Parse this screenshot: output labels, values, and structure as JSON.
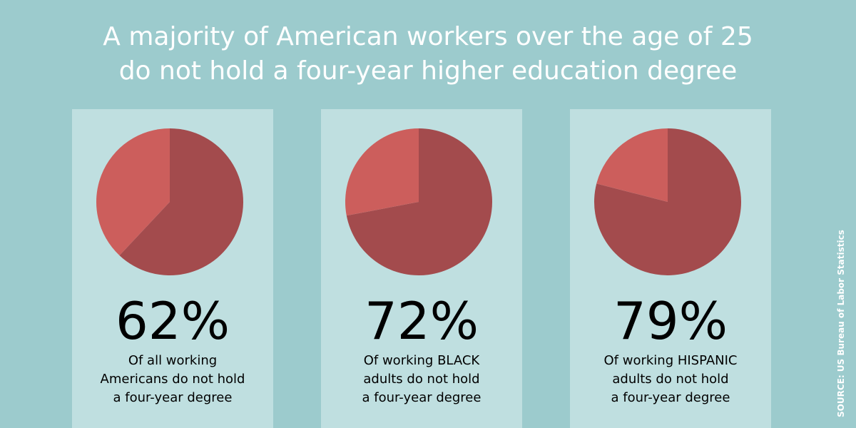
{
  "title": {
    "line1": "A majority of American workers over the age of 25",
    "line2": "do not hold a four-year higher education degree"
  },
  "colors": {
    "background": "#9ccbcd",
    "panel": "#bfdfe0",
    "no_degree_slice": "#a34b4d",
    "degree_slice": "#cc5e5c",
    "title_text": "#ffffff"
  },
  "chart_data": [
    {
      "type": "pie",
      "value_label": "62%",
      "values": [
        62,
        38
      ],
      "description": [
        "Of all working",
        "Americans do not hold",
        "a four-year degree"
      ]
    },
    {
      "type": "pie",
      "value_label": "72%",
      "values": [
        72,
        28
      ],
      "description": [
        "Of working BLACK",
        "adults do not hold",
        "a four-year degree"
      ]
    },
    {
      "type": "pie",
      "value_label": "79%",
      "values": [
        79,
        21
      ],
      "description": [
        "Of working HISPANIC",
        "adults do not hold",
        "a four-year degree"
      ]
    }
  ],
  "source": "SOURCE: US Bureau of Labor Statistics"
}
